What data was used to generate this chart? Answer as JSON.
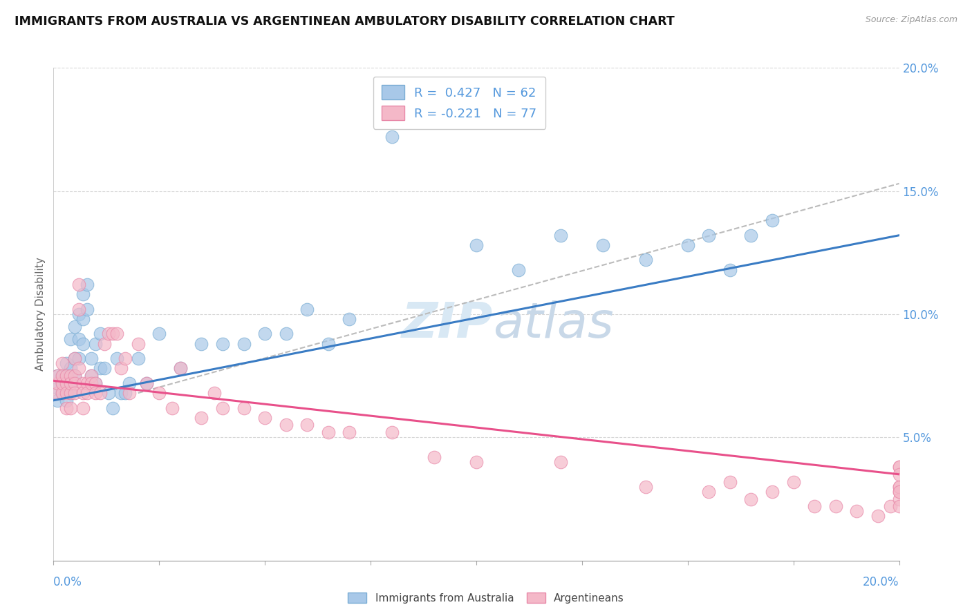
{
  "title": "IMMIGRANTS FROM AUSTRALIA VS ARGENTINEAN AMBULATORY DISABILITY CORRELATION CHART",
  "source": "Source: ZipAtlas.com",
  "ylabel": "Ambulatory Disability",
  "x_min": 0.0,
  "x_max": 0.2,
  "y_min": 0.0,
  "y_max": 0.2,
  "yticks": [
    0.05,
    0.1,
    0.15,
    0.2
  ],
  "ytick_labels": [
    "5.0%",
    "10.0%",
    "15.0%",
    "20.0%"
  ],
  "legend_r1": "R =  0.427   N = 62",
  "legend_r2": "R = -0.221   N = 77",
  "legend_label1": "Immigrants from Australia",
  "legend_label2": "Argentineans",
  "blue_color": "#a8c8e8",
  "blue_edge_color": "#7aadd4",
  "pink_color": "#f4b8c8",
  "pink_edge_color": "#e888a8",
  "blue_line_color": "#3a7cc4",
  "pink_line_color": "#e8508a",
  "dashed_line_color": "#bbbbbb",
  "axis_label_color": "#5599dd",
  "watermark_color": "#d8e8f4",
  "blue_dots_x": [
    0.001,
    0.001,
    0.001,
    0.002,
    0.002,
    0.002,
    0.003,
    0.003,
    0.003,
    0.003,
    0.004,
    0.004,
    0.004,
    0.004,
    0.005,
    0.005,
    0.005,
    0.006,
    0.006,
    0.006,
    0.007,
    0.007,
    0.007,
    0.008,
    0.008,
    0.009,
    0.009,
    0.01,
    0.01,
    0.011,
    0.011,
    0.012,
    0.013,
    0.014,
    0.015,
    0.016,
    0.017,
    0.018,
    0.02,
    0.022,
    0.025,
    0.03,
    0.035,
    0.04,
    0.045,
    0.05,
    0.055,
    0.06,
    0.065,
    0.07,
    0.08,
    0.09,
    0.1,
    0.11,
    0.12,
    0.13,
    0.14,
    0.15,
    0.155,
    0.16,
    0.165,
    0.17
  ],
  "blue_dots_y": [
    0.065,
    0.075,
    0.07,
    0.075,
    0.068,
    0.072,
    0.08,
    0.07,
    0.065,
    0.075,
    0.09,
    0.078,
    0.072,
    0.068,
    0.095,
    0.082,
    0.075,
    0.1,
    0.09,
    0.082,
    0.108,
    0.098,
    0.088,
    0.112,
    0.102,
    0.082,
    0.075,
    0.088,
    0.072,
    0.092,
    0.078,
    0.078,
    0.068,
    0.062,
    0.082,
    0.068,
    0.068,
    0.072,
    0.082,
    0.072,
    0.092,
    0.078,
    0.088,
    0.088,
    0.088,
    0.092,
    0.092,
    0.102,
    0.088,
    0.098,
    0.172,
    0.182,
    0.128,
    0.118,
    0.132,
    0.128,
    0.122,
    0.128,
    0.132,
    0.118,
    0.132,
    0.138
  ],
  "pink_dots_x": [
    0.001,
    0.001,
    0.001,
    0.002,
    0.002,
    0.002,
    0.002,
    0.003,
    0.003,
    0.003,
    0.003,
    0.004,
    0.004,
    0.004,
    0.004,
    0.005,
    0.005,
    0.005,
    0.005,
    0.006,
    0.006,
    0.006,
    0.007,
    0.007,
    0.007,
    0.008,
    0.008,
    0.009,
    0.009,
    0.01,
    0.01,
    0.011,
    0.012,
    0.013,
    0.014,
    0.015,
    0.016,
    0.017,
    0.018,
    0.02,
    0.022,
    0.025,
    0.028,
    0.03,
    0.035,
    0.038,
    0.04,
    0.045,
    0.05,
    0.055,
    0.06,
    0.065,
    0.07,
    0.08,
    0.09,
    0.1,
    0.12,
    0.14,
    0.155,
    0.16,
    0.165,
    0.17,
    0.175,
    0.18,
    0.185,
    0.19,
    0.195,
    0.198,
    0.2,
    0.2,
    0.2,
    0.2,
    0.2,
    0.2,
    0.2,
    0.2,
    0.2
  ],
  "pink_dots_y": [
    0.068,
    0.072,
    0.075,
    0.068,
    0.072,
    0.075,
    0.08,
    0.072,
    0.075,
    0.068,
    0.062,
    0.075,
    0.068,
    0.062,
    0.072,
    0.082,
    0.075,
    0.072,
    0.068,
    0.112,
    0.102,
    0.078,
    0.072,
    0.068,
    0.062,
    0.072,
    0.068,
    0.075,
    0.072,
    0.072,
    0.068,
    0.068,
    0.088,
    0.092,
    0.092,
    0.092,
    0.078,
    0.082,
    0.068,
    0.088,
    0.072,
    0.068,
    0.062,
    0.078,
    0.058,
    0.068,
    0.062,
    0.062,
    0.058,
    0.055,
    0.055,
    0.052,
    0.052,
    0.052,
    0.042,
    0.04,
    0.04,
    0.03,
    0.028,
    0.032,
    0.025,
    0.028,
    0.032,
    0.022,
    0.022,
    0.02,
    0.018,
    0.022,
    0.038,
    0.03,
    0.028,
    0.025,
    0.038,
    0.03,
    0.022,
    0.028,
    0.035
  ],
  "blue_trend": [
    0.0,
    0.065,
    0.2,
    0.132
  ],
  "pink_trend": [
    0.0,
    0.073,
    0.2,
    0.035
  ],
  "dashed_trend": [
    0.02,
    0.068,
    0.2,
    0.153
  ]
}
